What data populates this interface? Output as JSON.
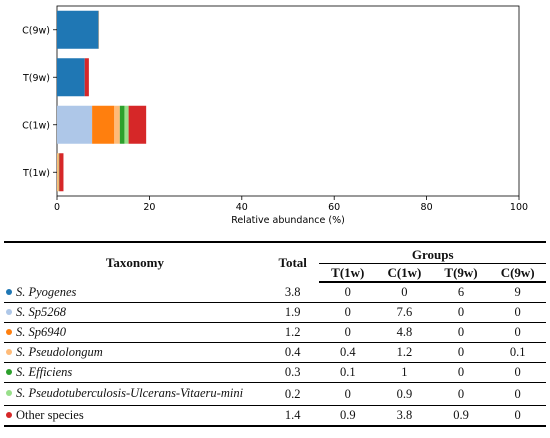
{
  "chart_data": {
    "type": "bar",
    "orientation": "horizontal",
    "stacked": true,
    "categories": [
      "T(1w)",
      "C(1w)",
      "T(9w)",
      "C(9w)"
    ],
    "series": [
      {
        "name": "S. Pyogenes",
        "color": "#1f77b4",
        "values": [
          0,
          0,
          6,
          9
        ]
      },
      {
        "name": "S. Sp5268",
        "color": "#aec7e8",
        "values": [
          0,
          7.6,
          0,
          0
        ]
      },
      {
        "name": "S. Sp6940",
        "color": "#ff7f0e",
        "values": [
          0,
          4.8,
          0,
          0
        ]
      },
      {
        "name": "S. Pseudolongum",
        "color": "#ffbb78",
        "values": [
          0.4,
          1.2,
          0,
          0.1
        ]
      },
      {
        "name": "S. Efficiens",
        "color": "#2ca02c",
        "values": [
          0.1,
          1,
          0,
          0
        ]
      },
      {
        "name": "S. Pseudotuberculosis-Ulcerans-Vitaeru-mini",
        "color": "#98df8a",
        "values": [
          0,
          0.9,
          0,
          0
        ]
      },
      {
        "name": "Other species",
        "color": "#d62728",
        "values": [
          0.9,
          3.8,
          0.9,
          0
        ]
      }
    ],
    "xlabel": "Relative abundance (%)",
    "ylabel": "",
    "xlim": [
      0,
      100
    ],
    "xticks": [
      0,
      20,
      40,
      60,
      80,
      100
    ],
    "grid": false
  },
  "table": {
    "headers": {
      "taxonomy": "Taxonomy",
      "total": "Total",
      "groups": "Groups"
    },
    "group_cols": [
      "T(1w)",
      "C(1w)",
      "T(9w)",
      "C(9w)"
    ],
    "rows": [
      {
        "name": "S. Pyogenes",
        "color": "#1f77b4",
        "italic": true,
        "total": "3.8",
        "vals": [
          "0",
          "0",
          "6",
          "9"
        ]
      },
      {
        "name": "S. Sp5268",
        "color": "#aec7e8",
        "italic": true,
        "total": "1.9",
        "vals": [
          "0",
          "7.6",
          "0",
          "0"
        ]
      },
      {
        "name": "S. Sp6940",
        "color": "#ff7f0e",
        "italic": true,
        "total": "1.2",
        "vals": [
          "0",
          "4.8",
          "0",
          "0"
        ]
      },
      {
        "name": "S. Pseudolongum",
        "color": "#ffbb78",
        "italic": true,
        "total": "0.4",
        "vals": [
          "0.4",
          "1.2",
          "0",
          "0.1"
        ]
      },
      {
        "name": "S. Efficiens",
        "color": "#2ca02c",
        "italic": true,
        "total": "0.3",
        "vals": [
          "0.1",
          "1",
          "0",
          "0"
        ]
      },
      {
        "name": "S. Pseudotuberculosis-Ulcerans-Vitaeru-mini",
        "color": "#98df8a",
        "italic": true,
        "total": "0.2",
        "vals": [
          "0",
          "0.9",
          "0",
          "0"
        ]
      },
      {
        "name": "Other species",
        "color": "#d62728",
        "italic": false,
        "total": "1.4",
        "vals": [
          "0.9",
          "3.8",
          "0.9",
          "0"
        ]
      }
    ]
  }
}
